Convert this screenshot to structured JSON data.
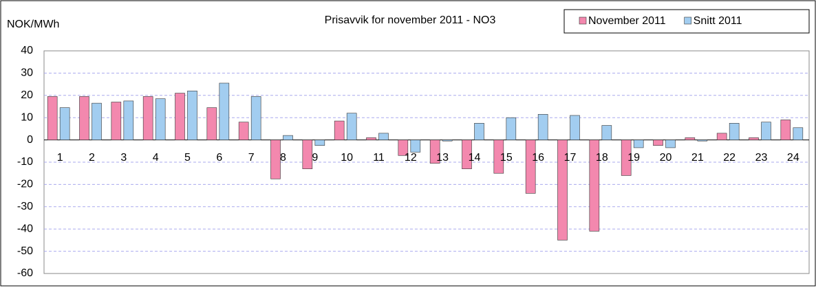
{
  "chart_data": {
    "type": "bar",
    "title": "Prisavvik for november 2011 - NO3",
    "y_label": "NOK/MWh",
    "categories": [
      "1",
      "2",
      "3",
      "4",
      "5",
      "6",
      "7",
      "8",
      "9",
      "10",
      "11",
      "12",
      "13",
      "14",
      "15",
      "16",
      "17",
      "18",
      "19",
      "20",
      "21",
      "22",
      "23",
      "24"
    ],
    "series": [
      {
        "name": "November 2011",
        "color": "#f388ae",
        "values": [
          19.5,
          19.5,
          17,
          19.5,
          21,
          14.5,
          8,
          -17.5,
          -13,
          8.5,
          1,
          -7,
          -10.5,
          -13,
          -15,
          -24,
          -45,
          -41,
          -16,
          -2.5,
          1,
          3,
          1,
          9
        ]
      },
      {
        "name": "Snitt 2011",
        "color": "#a2cdf0",
        "values": [
          14.5,
          16.5,
          17.5,
          18.5,
          22,
          25.5,
          19.5,
          2,
          -2.5,
          12,
          3,
          -5.5,
          -0.5,
          7.5,
          10,
          11.5,
          11,
          6.5,
          -3.5,
          -3.5,
          -0.5,
          7.5,
          8,
          5.5
        ]
      }
    ],
    "ylim": [
      -60,
      40
    ],
    "yticks": [
      -60,
      -50,
      -40,
      -30,
      -20,
      -10,
      0,
      10,
      20,
      30,
      40
    ],
    "grid": true,
    "legend": "top-right"
  }
}
